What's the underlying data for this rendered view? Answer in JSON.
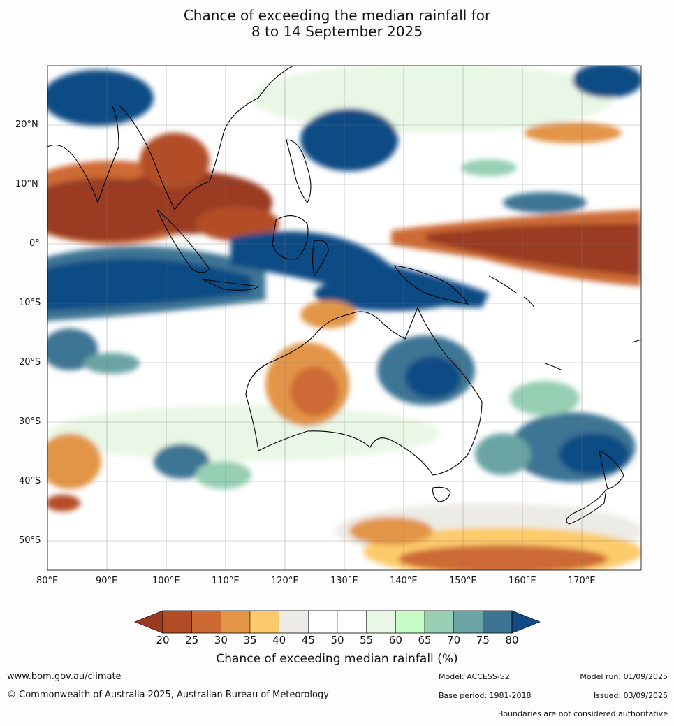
{
  "title": {
    "line1": "Chance of exceeding the median rainfall for",
    "line2": "8 to 14 September 2025"
  },
  "map": {
    "lon_ticks": [
      "80°E",
      "90°E",
      "100°E",
      "110°E",
      "120°E",
      "130°E",
      "140°E",
      "150°E",
      "160°E",
      "170°E"
    ],
    "lat_ticks": [
      "20°N",
      "10°N",
      "0°",
      "10°S",
      "20°S",
      "30°S",
      "40°S",
      "50°S"
    ],
    "region": "Indian Ocean, Maritime Continent, Australia, Western Pacific"
  },
  "colorbar": {
    "ticks": [
      "20",
      "25",
      "30",
      "35",
      "40",
      "45",
      "50",
      "55",
      "60",
      "65",
      "70",
      "75",
      "80"
    ],
    "colors": [
      "#9a3a20",
      "#b24d28",
      "#cd6a34",
      "#e39547",
      "#fdcb6b",
      "#ecebe6",
      "#ffffff",
      "#ffffff",
      "#e9f7e6",
      "#c6fbc6",
      "#96cfb4",
      "#6aa4a4",
      "#3d7494",
      "#114b85"
    ],
    "label": "Chance of exceeding median rainfall (%)"
  },
  "footer": {
    "website": "www.bom.gov.au/climate",
    "copyright": "© Commonwealth of Australia 2025, Australian Bureau of Meteorology",
    "model": "Model: ACCESS-S2",
    "base_period": "Base period: 1981-2018",
    "model_run": "Model run: 01/09/2025",
    "issued": "Issued: 03/09/2025",
    "disclaimer": "Boundaries are not considered authoritative"
  }
}
